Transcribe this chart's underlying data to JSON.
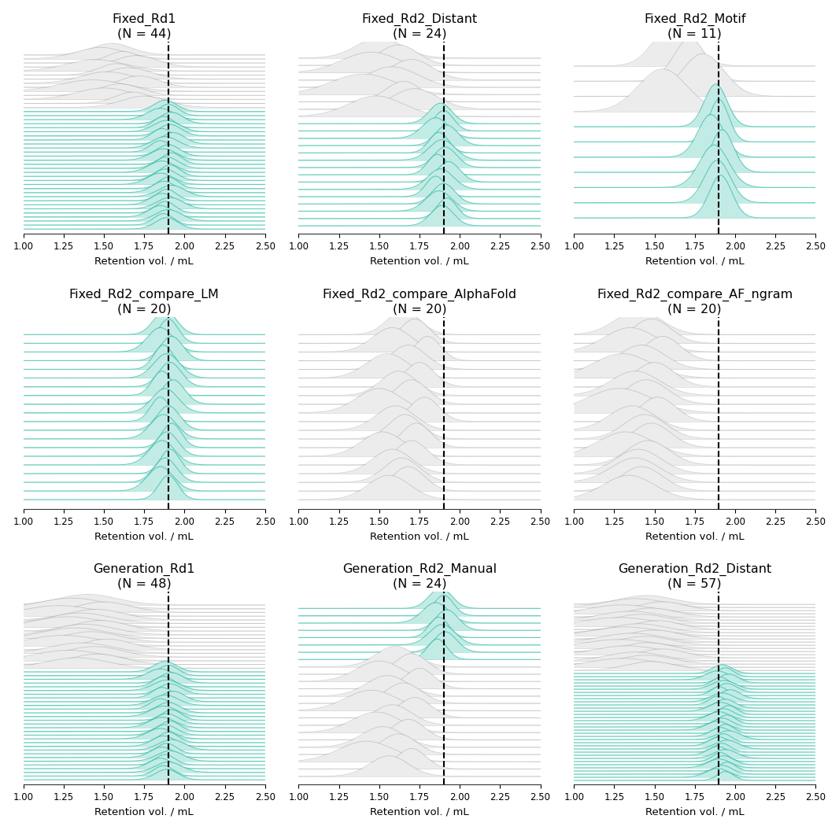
{
  "subplots": [
    {
      "title": "Fixed_Rd1",
      "n": 44,
      "green_mus": [
        1.88,
        1.9,
        1.85,
        1.92,
        1.87,
        1.89,
        1.91,
        1.86,
        1.93,
        1.88,
        1.85,
        1.9,
        1.87,
        1.92,
        1.89,
        1.86,
        1.91,
        1.88,
        1.85,
        1.9,
        1.87,
        1.92,
        1.89,
        1.86,
        1.91,
        1.88,
        1.85,
        1.9,
        1.87,
        1.89
      ],
      "green_sigmas": [
        0.07,
        0.06,
        0.08,
        0.07,
        0.06,
        0.08,
        0.07,
        0.06,
        0.07,
        0.08,
        0.06,
        0.07,
        0.08,
        0.06,
        0.07,
        0.08,
        0.06,
        0.07,
        0.08,
        0.06,
        0.07,
        0.08,
        0.06,
        0.07,
        0.08,
        0.06,
        0.07,
        0.08,
        0.06,
        0.07
      ],
      "grey_mus": [
        1.55,
        1.48,
        1.62,
        1.7,
        1.45,
        1.58,
        1.65,
        1.52,
        1.72,
        1.43,
        1.6,
        1.5,
        1.68,
        1.75
      ],
      "grey_sigmas": [
        0.12,
        0.15,
        0.1,
        0.13,
        0.18,
        0.11,
        0.14,
        0.16,
        0.12,
        0.2,
        0.13,
        0.17,
        0.11,
        0.14
      ],
      "order": "green_top"
    },
    {
      "title": "Fixed_Rd2_Distant",
      "n": 24,
      "green_mus": [
        1.88,
        1.9,
        1.85,
        1.92,
        1.87,
        1.89,
        1.91,
        1.86,
        1.93,
        1.88,
        1.85,
        1.9,
        1.87,
        1.92,
        1.89
      ],
      "green_sigmas": [
        0.07,
        0.06,
        0.08,
        0.07,
        0.06,
        0.08,
        0.07,
        0.06,
        0.07,
        0.08,
        0.06,
        0.07,
        0.08,
        0.06,
        0.07
      ],
      "grey_mus": [
        1.5,
        1.62,
        1.45,
        1.7,
        1.58,
        1.4,
        1.65,
        1.72,
        1.48
      ],
      "grey_sigmas": [
        0.14,
        0.12,
        0.18,
        0.13,
        0.16,
        0.2,
        0.11,
        0.14,
        0.17
      ],
      "order": "green_top"
    },
    {
      "title": "Fixed_Rd2_Motif",
      "n": 11,
      "green_mus": [
        1.88,
        1.9,
        1.85,
        1.92,
        1.87,
        1.89,
        1.91
      ],
      "green_sigmas": [
        0.07,
        0.06,
        0.08,
        0.07,
        0.09,
        0.08,
        0.07
      ],
      "grey_mus": [
        1.62,
        1.72,
        1.8,
        1.55
      ],
      "grey_sigmas": [
        0.12,
        0.1,
        0.13,
        0.15
      ],
      "order": "green_top"
    },
    {
      "title": "Fixed_Rd2_compare_LM",
      "n": 20,
      "green_mus": [
        1.88,
        1.9,
        1.85,
        1.92,
        1.87,
        1.89,
        1.91,
        1.86,
        1.93,
        1.88,
        1.85,
        1.9,
        1.87,
        1.92,
        1.89,
        1.86,
        1.91,
        1.88,
        1.85,
        1.9
      ],
      "green_sigmas": [
        0.07,
        0.06,
        0.08,
        0.07,
        0.06,
        0.08,
        0.07,
        0.06,
        0.07,
        0.08,
        0.06,
        0.07,
        0.08,
        0.06,
        0.07,
        0.08,
        0.06,
        0.07,
        0.08,
        0.06
      ],
      "grey_mus": [],
      "grey_sigmas": [],
      "order": "green_top"
    },
    {
      "title": "Fixed_Rd2_compare_AlphaFold",
      "n": 20,
      "green_mus": [],
      "green_sigmas": [],
      "grey_mus": [
        1.65,
        1.72,
        1.58,
        1.8,
        1.68,
        1.55,
        1.75,
        1.62,
        1.7,
        1.5,
        1.78,
        1.6,
        1.66,
        1.73,
        1.52,
        1.7,
        1.58,
        1.64,
        1.68,
        1.56
      ],
      "grey_sigmas": [
        0.1,
        0.09,
        0.12,
        0.08,
        0.11,
        0.13,
        0.09,
        0.11,
        0.1,
        0.14,
        0.09,
        0.12,
        0.1,
        0.09,
        0.13,
        0.1,
        0.12,
        0.11,
        0.1,
        0.13
      ],
      "order": "grey_top"
    },
    {
      "title": "Fixed_Rd2_compare_AF_ngram",
      "n": 20,
      "green_mus": [],
      "green_sigmas": [],
      "grey_mus": [
        1.4,
        1.48,
        1.35,
        1.55,
        1.42,
        1.3,
        1.5,
        1.38,
        1.45,
        1.28,
        1.52,
        1.36,
        1.44,
        1.48,
        1.32,
        1.46,
        1.4,
        1.38,
        1.42,
        1.34
      ],
      "grey_sigmas": [
        0.14,
        0.12,
        0.16,
        0.11,
        0.14,
        0.18,
        0.12,
        0.15,
        0.13,
        0.2,
        0.11,
        0.14,
        0.13,
        0.12,
        0.17,
        0.13,
        0.14,
        0.15,
        0.13,
        0.16
      ],
      "order": "grey_top"
    },
    {
      "title": "Generation_Rd1",
      "n": 48,
      "green_mus": [
        1.88,
        1.9,
        1.85,
        1.92,
        1.87,
        1.89,
        1.91,
        1.86,
        1.93,
        1.88,
        1.85,
        1.9,
        1.87,
        1.92,
        1.89,
        1.86,
        1.91,
        1.88,
        1.85,
        1.9,
        1.87,
        1.92,
        1.89,
        1.86,
        1.91,
        1.88,
        1.85,
        1.9,
        1.87,
        1.89
      ],
      "green_sigmas": [
        0.07,
        0.06,
        0.08,
        0.07,
        0.06,
        0.08,
        0.07,
        0.06,
        0.07,
        0.08,
        0.06,
        0.07,
        0.08,
        0.06,
        0.07,
        0.08,
        0.06,
        0.07,
        0.08,
        0.06,
        0.07,
        0.08,
        0.06,
        0.07,
        0.08,
        0.06,
        0.07,
        0.08,
        0.06,
        0.07
      ],
      "grey_mus": [
        1.4,
        1.3,
        1.5,
        1.22,
        1.45,
        1.35,
        1.28,
        1.48,
        1.38,
        1.32,
        1.42,
        1.25,
        1.52,
        1.36,
        1.44,
        1.28,
        1.46,
        1.33
      ],
      "grey_sigmas": [
        0.18,
        0.2,
        0.16,
        0.22,
        0.17,
        0.19,
        0.21,
        0.16,
        0.18,
        0.2,
        0.17,
        0.22,
        0.15,
        0.19,
        0.17,
        0.21,
        0.16,
        0.19
      ],
      "order": "green_top"
    },
    {
      "title": "Generation_Rd2_Manual",
      "n": 24,
      "green_mus": [
        1.88,
        1.9,
        1.85,
        1.92,
        1.87,
        1.89,
        1.91,
        1.86
      ],
      "green_sigmas": [
        0.07,
        0.06,
        0.08,
        0.07,
        0.06,
        0.08,
        0.07,
        0.06
      ],
      "grey_mus": [
        1.6,
        1.7,
        1.5,
        1.75,
        1.55,
        1.65,
        1.45,
        1.72,
        1.58,
        1.48,
        1.68,
        1.52,
        1.62,
        1.42,
        1.7,
        1.56
      ],
      "grey_sigmas": [
        0.12,
        0.1,
        0.14,
        0.09,
        0.13,
        0.11,
        0.16,
        0.1,
        0.12,
        0.15,
        0.1,
        0.13,
        0.11,
        0.17,
        0.09,
        0.12
      ],
      "order": "grey_top"
    },
    {
      "title": "Generation_Rd2_Distant",
      "n": 57,
      "green_mus": [
        1.92,
        1.94,
        1.89,
        1.96,
        1.91,
        1.93,
        1.95,
        1.9,
        1.97,
        1.92,
        1.89,
        1.94,
        1.91,
        1.96,
        1.93,
        1.9,
        1.95,
        1.92,
        1.89,
        1.94,
        1.91,
        1.96,
        1.93,
        1.9,
        1.95,
        1.92,
        1.89,
        1.94,
        1.91,
        1.93,
        1.9,
        1.95,
        1.92,
        1.89,
        1.94
      ],
      "green_sigmas": [
        0.06,
        0.05,
        0.07,
        0.06,
        0.05,
        0.07,
        0.06,
        0.05,
        0.06,
        0.07,
        0.05,
        0.06,
        0.07,
        0.05,
        0.06,
        0.07,
        0.05,
        0.06,
        0.07,
        0.05,
        0.06,
        0.07,
        0.05,
        0.06,
        0.07,
        0.05,
        0.06,
        0.07,
        0.05,
        0.06,
        0.07,
        0.05,
        0.06,
        0.07,
        0.05
      ],
      "grey_mus": [
        1.45,
        1.38,
        1.55,
        1.3,
        1.48,
        1.35,
        1.42,
        1.28,
        1.52,
        1.4,
        1.32,
        1.5,
        1.36,
        1.44,
        1.28,
        1.46,
        1.33,
        1.55,
        1.38,
        1.45,
        1.3,
        1.48
      ],
      "grey_sigmas": [
        0.16,
        0.18,
        0.14,
        0.2,
        0.15,
        0.18,
        0.16,
        0.22,
        0.14,
        0.17,
        0.2,
        0.15,
        0.18,
        0.16,
        0.22,
        0.15,
        0.19,
        0.14,
        0.17,
        0.16,
        0.2,
        0.15
      ],
      "order": "green_top"
    }
  ],
  "xlim": [
    1.0,
    2.5
  ],
  "xticks": [
    1.0,
    1.25,
    1.5,
    1.75,
    2.0,
    2.25,
    2.5
  ],
  "vline_x": 1.9,
  "xlabel": "Retention vol. / mL",
  "green_color": "#3bbfaa",
  "grey_color": "#999999",
  "bg_color": "#ffffff",
  "title_fontsize": 11.5,
  "label_fontsize": 9.5,
  "tick_fontsize": 8.5
}
